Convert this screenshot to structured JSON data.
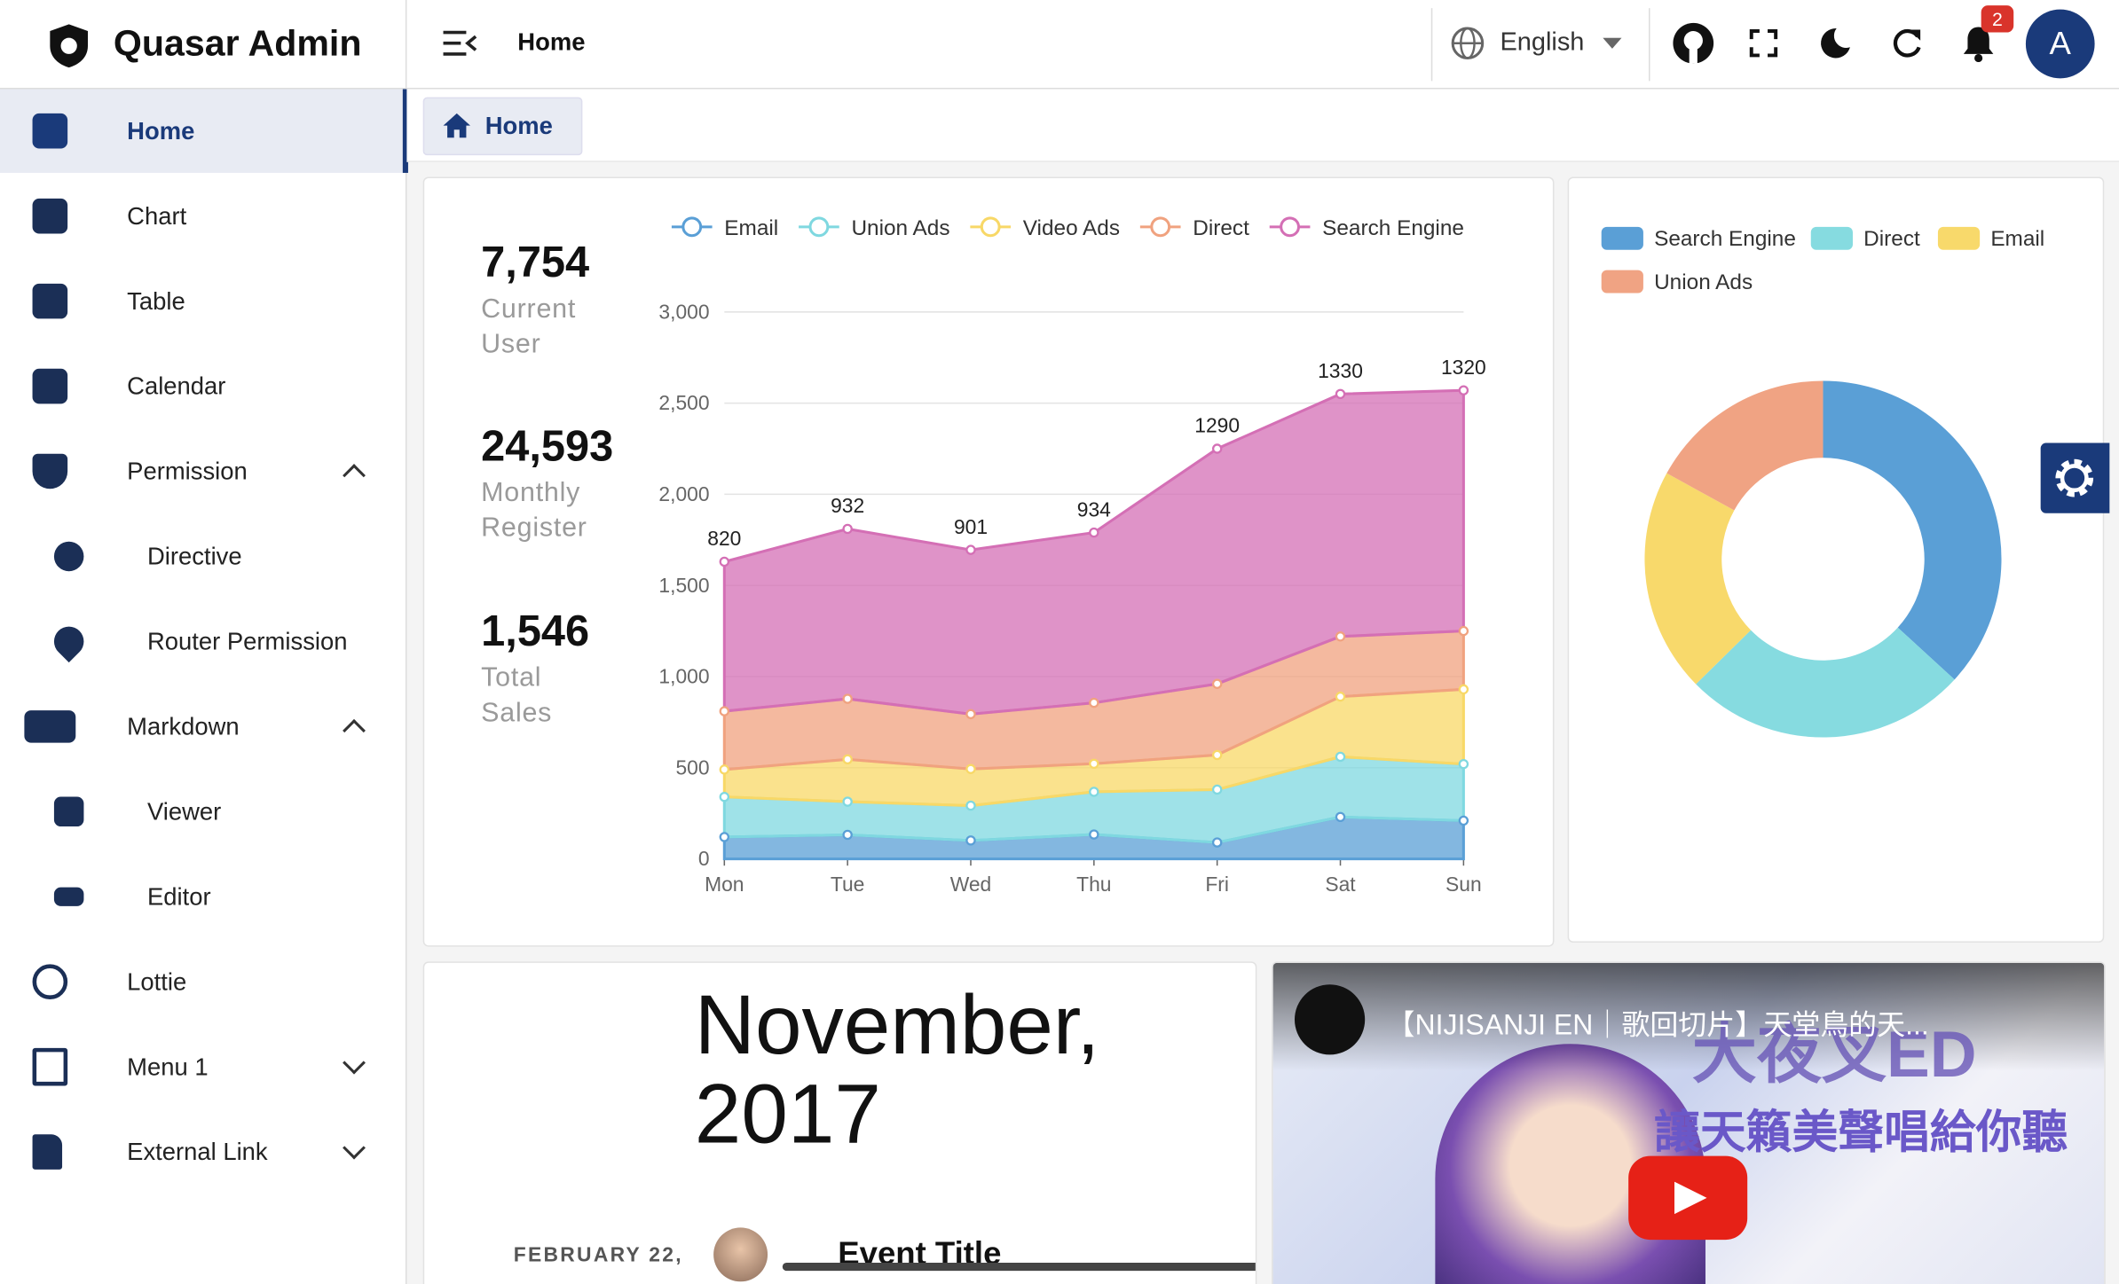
{
  "app": {
    "brand": "Quasar Admin",
    "header_title": "Home",
    "language": "English",
    "notification_count": "2",
    "avatar": "A",
    "breadcrumb": "Home",
    "sidebar": [
      "Home",
      "Chart",
      "Table",
      "Calendar",
      "Permission",
      "Directive",
      "Router Permission",
      "Markdown",
      "Viewer",
      "Editor",
      "Lottie",
      "Menu 1",
      "External Link"
    ],
    "stats": [
      {
        "value": "7,754",
        "label": "Current User"
      },
      {
        "value": "24,593",
        "label": "Monthly Register"
      },
      {
        "value": "1,546",
        "label": "Total Sales"
      }
    ],
    "calendar": {
      "month": "November, 2017",
      "event_date": "FEBRUARY 22,",
      "event_title": "Event Title"
    },
    "video": {
      "title": "【NIJISANJI EN｜歌回切片】天堂鳥的天...",
      "overlay_top": "大夜叉ED",
      "overlay_bottom": "讓天籟美聲唱給你聽"
    }
  },
  "chart_data": [
    {
      "type": "stacked-area",
      "categories": [
        "Mon",
        "Tue",
        "Wed",
        "Thu",
        "Fri",
        "Sat",
        "Sun"
      ],
      "ylim": [
        0,
        3000
      ],
      "yticks": [
        0,
        500,
        {
          "value": 1000,
          "label": "1,000"
        },
        {
          "value": 1500,
          "label": "1,500"
        },
        {
          "value": 2000,
          "label": "2,000"
        },
        {
          "value": 2500,
          "label": "2,500"
        },
        {
          "value": 3000,
          "label": "3,000"
        }
      ],
      "grid": true,
      "series": [
        {
          "name": "Email",
          "color": "#5a9fd6",
          "values": [
            120,
            132,
            101,
            134,
            90,
            230,
            210
          ]
        },
        {
          "name": "Union Ads",
          "color": "#7fd8e0",
          "values": [
            220,
            182,
            191,
            234,
            290,
            330,
            310
          ]
        },
        {
          "name": "Video Ads",
          "color": "#f8d867",
          "values": [
            150,
            232,
            201,
            154,
            190,
            330,
            410
          ]
        },
        {
          "name": "Direct",
          "color": "#f0a27f",
          "values": [
            320,
            332,
            301,
            334,
            390,
            330,
            320
          ]
        },
        {
          "name": "Search Engine",
          "color": "#d46fb5",
          "values": [
            820,
            932,
            901,
            934,
            1290,
            1330,
            1320
          ],
          "labels": true
        }
      ]
    },
    {
      "type": "donut",
      "categories": [
        "Search Engine",
        "Direct",
        "Email",
        "Union Ads"
      ],
      "values": [
        1048,
        735,
        580,
        484
      ],
      "colors": [
        "#5a9fd6",
        "#86dbe0",
        "#f8d96b",
        "#f0a383"
      ]
    }
  ]
}
